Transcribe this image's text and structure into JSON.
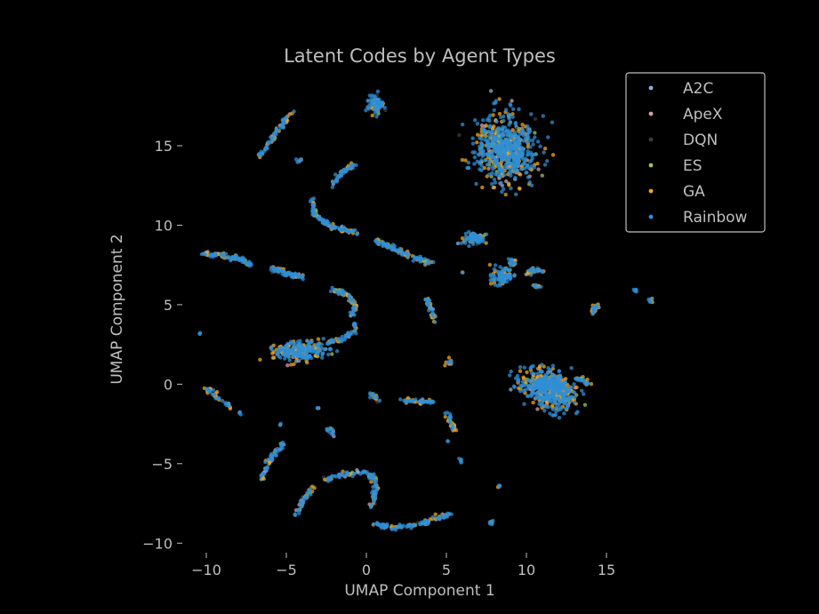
{
  "chart_data": {
    "type": "scatter",
    "title": "Latent Codes by Agent Types",
    "xlabel": "UMAP Component 1",
    "ylabel": "UMAP Component 2",
    "xlim": [
      -11.5,
      18.5
    ],
    "ylim": [
      -10.6,
      18.8
    ],
    "x_ticks": [
      -10,
      -5,
      0,
      5,
      10,
      15
    ],
    "y_ticks": [
      -10,
      -5,
      0,
      5,
      10,
      15
    ],
    "x_tick_labels": [
      "−10",
      "−5",
      "0",
      "5",
      "10",
      "15"
    ],
    "y_tick_labels": [
      "−10",
      "−5",
      "0",
      "5",
      "10",
      "15"
    ],
    "grid": false,
    "legend_position": "top-right",
    "series": [
      {
        "name": "A2C",
        "color": "#8ab2d4"
      },
      {
        "name": "ApeX",
        "color": "#d89ab0"
      },
      {
        "name": "DQN",
        "color": "#3c3c3c"
      },
      {
        "name": "ES",
        "color": "#9cc25e"
      },
      {
        "name": "GA",
        "color": "#f2a51e"
      },
      {
        "name": "Rainbow",
        "color": "#2f8fd6"
      }
    ],
    "clusters": [
      {
        "type": "blob",
        "center": [
          8.7,
          14.8
        ],
        "radius": [
          1.7,
          1.9
        ],
        "n": 650
      },
      {
        "type": "blob",
        "center": [
          11.4,
          -0.3
        ],
        "radius": [
          1.7,
          1.0
        ],
        "n": 550,
        "rotate": -0.4
      },
      {
        "type": "blob",
        "center": [
          -4.2,
          2.1
        ],
        "radius": [
          1.5,
          0.55
        ],
        "n": 240
      },
      {
        "type": "blob",
        "center": [
          0.6,
          17.6
        ],
        "radius": [
          0.45,
          0.6
        ],
        "n": 80
      },
      {
        "type": "blob",
        "center": [
          8.5,
          6.8
        ],
        "radius": [
          0.7,
          0.45
        ],
        "n": 90
      },
      {
        "type": "blob",
        "center": [
          6.7,
          9.2
        ],
        "radius": [
          0.8,
          0.35
        ],
        "n": 70
      },
      {
        "type": "curve",
        "points": [
          [
            -6.7,
            14.3
          ],
          [
            -6.2,
            15.0
          ],
          [
            -5.4,
            16.2
          ],
          [
            -4.6,
            17.1
          ]
        ],
        "n": 70
      },
      {
        "type": "curve",
        "points": [
          [
            -2.1,
            12.6
          ],
          [
            -1.5,
            13.3
          ],
          [
            -0.8,
            13.8
          ]
        ],
        "n": 50
      },
      {
        "type": "curve",
        "points": [
          [
            -3.4,
            11.6
          ],
          [
            -3.2,
            10.6
          ],
          [
            -2.2,
            9.9
          ],
          [
            -0.6,
            9.5
          ]
        ],
        "n": 110
      },
      {
        "type": "curve",
        "points": [
          [
            0.4,
            9.1
          ],
          [
            1.6,
            8.6
          ],
          [
            2.8,
            8.0
          ],
          [
            4.2,
            7.6
          ]
        ],
        "n": 110
      },
      {
        "type": "curve",
        "points": [
          [
            -10.2,
            8.2
          ],
          [
            -9.0,
            8.1
          ],
          [
            -8.0,
            7.9
          ],
          [
            -7.2,
            7.5
          ]
        ],
        "n": 90
      },
      {
        "type": "curve",
        "points": [
          [
            -6.0,
            7.3
          ],
          [
            -5.0,
            7.0
          ],
          [
            -4.0,
            6.7
          ]
        ],
        "n": 70
      },
      {
        "type": "curve",
        "points": [
          [
            -2.2,
            6.0
          ],
          [
            -1.2,
            5.6
          ],
          [
            -0.7,
            5.0
          ],
          [
            -0.9,
            4.3
          ]
        ],
        "n": 80
      },
      {
        "type": "curve",
        "points": [
          [
            -2.6,
            2.6
          ],
          [
            -1.6,
            2.8
          ],
          [
            -0.8,
            3.3
          ],
          [
            -0.7,
            3.8
          ]
        ],
        "n": 60
      },
      {
        "type": "curve",
        "points": [
          [
            3.8,
            5.4
          ],
          [
            4.0,
            4.8
          ],
          [
            4.2,
            4.0
          ]
        ],
        "n": 40
      },
      {
        "type": "curve",
        "points": [
          [
            -10.1,
            -0.2
          ],
          [
            -9.3,
            -0.8
          ],
          [
            -8.5,
            -1.5
          ]
        ],
        "n": 40
      },
      {
        "type": "curve",
        "points": [
          [
            -6.5,
            -5.9
          ],
          [
            -6.1,
            -4.8
          ],
          [
            -5.5,
            -4.1
          ],
          [
            -5.2,
            -3.7
          ]
        ],
        "n": 60
      },
      {
        "type": "curve",
        "points": [
          [
            -2.6,
            -6.0
          ],
          [
            -1.5,
            -5.7
          ],
          [
            -0.3,
            -5.5
          ],
          [
            0.5,
            -5.9
          ],
          [
            0.6,
            -6.6
          ],
          [
            0.3,
            -7.9
          ]
        ],
        "n": 110
      },
      {
        "type": "curve",
        "points": [
          [
            0.4,
            -8.8
          ],
          [
            1.8,
            -9.0
          ],
          [
            3.4,
            -8.8
          ],
          [
            5.2,
            -8.2
          ]
        ],
        "n": 110
      },
      {
        "type": "curve",
        "points": [
          [
            -4.4,
            -8.2
          ],
          [
            -3.9,
            -7.2
          ],
          [
            -3.3,
            -6.4
          ]
        ],
        "n": 45
      },
      {
        "type": "curve",
        "points": [
          [
            2.2,
            -1.0
          ],
          [
            3.2,
            -1.1
          ],
          [
            4.2,
            -1.1
          ]
        ],
        "n": 45
      },
      {
        "type": "curve",
        "points": [
          [
            5.0,
            -1.8
          ],
          [
            5.3,
            -2.5
          ],
          [
            5.6,
            -2.9
          ]
        ],
        "n": 30
      },
      {
        "type": "curve",
        "points": [
          [
            10.0,
            7.0
          ],
          [
            10.5,
            7.2
          ],
          [
            10.9,
            7.1
          ]
        ],
        "n": 30
      },
      {
        "type": "curve",
        "points": [
          [
            14.1,
            4.5
          ],
          [
            14.3,
            4.8
          ],
          [
            14.5,
            5.0
          ]
        ],
        "n": 25
      },
      {
        "type": "curve",
        "points": [
          [
            13.1,
            0.3
          ],
          [
            13.6,
            0.3
          ],
          [
            13.8,
            0.0
          ]
        ],
        "n": 20
      },
      {
        "type": "curve",
        "points": [
          [
            0.3,
            -0.6
          ],
          [
            0.6,
            -0.8
          ],
          [
            0.7,
            -1.0
          ]
        ],
        "n": 15
      },
      {
        "type": "curve",
        "points": [
          [
            -2.4,
            -2.7
          ],
          [
            -2.2,
            -3.0
          ],
          [
            -2.1,
            -3.2
          ]
        ],
        "n": 15
      },
      {
        "type": "blob",
        "center": [
          5.1,
          1.4
        ],
        "radius": [
          0.2,
          0.15
        ],
        "n": 12
      },
      {
        "type": "blob",
        "center": [
          9.1,
          7.7
        ],
        "radius": [
          0.3,
          0.25
        ],
        "n": 14
      },
      {
        "type": "blob",
        "center": [
          10.6,
          6.1
        ],
        "radius": [
          0.25,
          0.2
        ],
        "n": 12
      },
      {
        "type": "blob",
        "center": [
          12.1,
          0.1
        ],
        "radius": [
          0.4,
          0.3
        ],
        "n": 15
      },
      {
        "type": "blob",
        "center": [
          7.8,
          -8.7
        ],
        "radius": [
          0.12,
          0.12
        ],
        "n": 8
      },
      {
        "type": "blob",
        "center": [
          5.9,
          -4.8
        ],
        "radius": [
          0.12,
          0.12
        ],
        "n": 6
      },
      {
        "type": "blob",
        "center": [
          8.3,
          -6.4
        ],
        "radius": [
          0.1,
          0.1
        ],
        "n": 5
      },
      {
        "type": "blob",
        "center": [
          16.8,
          5.9
        ],
        "radius": [
          0.1,
          0.1
        ],
        "n": 5
      },
      {
        "type": "blob",
        "center": [
          17.7,
          5.3
        ],
        "radius": [
          0.15,
          0.15
        ],
        "n": 8
      },
      {
        "type": "blob",
        "center": [
          -7.9,
          -1.8
        ],
        "radius": [
          0.1,
          0.1
        ],
        "n": 5
      },
      {
        "type": "blob",
        "center": [
          -10.4,
          3.2
        ],
        "radius": [
          0.08,
          0.08
        ],
        "n": 3
      },
      {
        "type": "blob",
        "center": [
          -5.4,
          -2.5
        ],
        "radius": [
          0.08,
          0.08
        ],
        "n": 3
      },
      {
        "type": "blob",
        "center": [
          -3.0,
          -1.5
        ],
        "radius": [
          0.08,
          0.08
        ],
        "n": 3
      },
      {
        "type": "blob",
        "center": [
          -4.2,
          14.1
        ],
        "radius": [
          0.15,
          0.12
        ],
        "n": 6
      },
      {
        "type": "blob",
        "center": [
          5.1,
          -3.6
        ],
        "radius": [
          0.06,
          0.06
        ],
        "n": 2
      },
      {
        "type": "blob",
        "center": [
          6.0,
          7.0
        ],
        "radius": [
          0.08,
          0.08
        ],
        "n": 3
      }
    ]
  }
}
